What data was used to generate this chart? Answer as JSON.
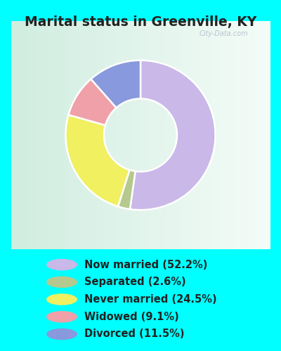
{
  "title": "Marital status in Greenville, KY",
  "title_fontsize": 13.5,
  "title_fontweight": "bold",
  "title_color": "#222222",
  "slices": [
    52.2,
    2.6,
    24.5,
    9.1,
    11.5
  ],
  "labels": [
    "Now married (52.2%)",
    "Separated (2.6%)",
    "Never married (24.5%)",
    "Widowed (9.1%)",
    "Divorced (11.5%)"
  ],
  "colors": [
    "#c9b8e8",
    "#b5c98e",
    "#f0f060",
    "#f0a0a8",
    "#8899dd"
  ],
  "bg_outer": "#00ffff",
  "bg_chart_color1": "#d0ede0",
  "bg_chart_color2": "#f0f8f4",
  "watermark": "City-Data.com",
  "legend_fontsize": 10.5,
  "donut_width": 0.42,
  "start_angle": 90
}
